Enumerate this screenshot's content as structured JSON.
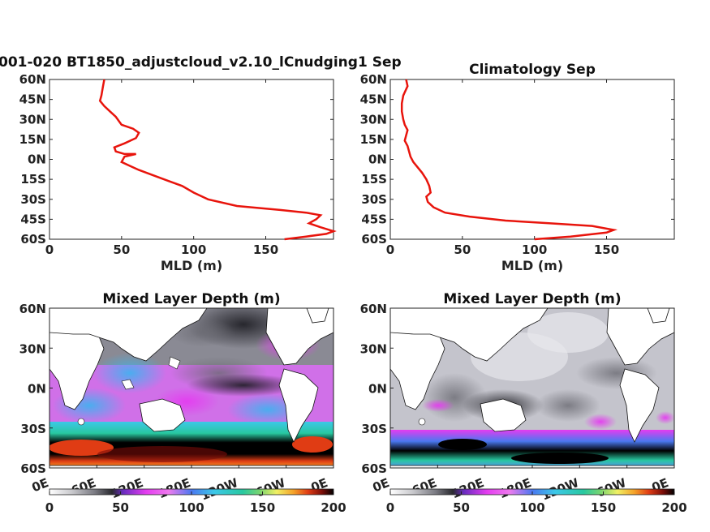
{
  "chart_data": [
    {
      "type": "line",
      "title": "001-020 BT1850_adjustcloud_v2.10_lCnudging1 Sep",
      "xlabel": "MLD (m)",
      "ylabel": "",
      "xlim": [
        0,
        197
      ],
      "ylim": [
        -60,
        60
      ],
      "xticks": [
        0,
        50,
        100,
        150
      ],
      "yticks": [
        "60N",
        "45N",
        "30N",
        "15N",
        "0N",
        "15S",
        "30S",
        "45S",
        "60S"
      ],
      "ytick_values": [
        60,
        45,
        30,
        15,
        0,
        -15,
        -30,
        -45,
        -60
      ],
      "series": [
        {
          "color": "#e8140c",
          "x": [
            163,
            178,
            192,
            197,
            188,
            180,
            185,
            188,
            178,
            160,
            130,
            110,
            100,
            92,
            82,
            72,
            62,
            56,
            50,
            52,
            60,
            52,
            46,
            45,
            52,
            60,
            62,
            58,
            50,
            46,
            42,
            38,
            35,
            36,
            37,
            38
          ],
          "y": [
            -60,
            -58,
            -56,
            -54,
            -51,
            -48,
            -45,
            -42,
            -40,
            -38,
            -35,
            -30,
            -25,
            -20,
            -16,
            -12,
            -8,
            -5,
            -2,
            2,
            4,
            4,
            6,
            9,
            12,
            16,
            20,
            23,
            26,
            32,
            36,
            40,
            44,
            48,
            54,
            60
          ]
        }
      ]
    },
    {
      "type": "line",
      "title": "Climatology Sep",
      "xlabel": "MLD (m)",
      "ylabel": "",
      "xlim": [
        0,
        197
      ],
      "ylim": [
        -60,
        60
      ],
      "xticks": [
        0,
        50,
        100,
        150
      ],
      "yticks": [
        "60N",
        "45N",
        "30N",
        "15N",
        "0N",
        "15S",
        "30S",
        "45S",
        "60S"
      ],
      "ytick_values": [
        60,
        45,
        30,
        15,
        0,
        -15,
        -30,
        -45,
        -60
      ],
      "series": [
        {
          "color": "#e8140c",
          "x": [
            100,
            125,
            150,
            155,
            140,
            110,
            80,
            55,
            38,
            30,
            26,
            25,
            28,
            27,
            25,
            22,
            19,
            16,
            14,
            13,
            12,
            10,
            11,
            12,
            10,
            9,
            8,
            8,
            9,
            12,
            11
          ],
          "y": [
            -60,
            -58,
            -55,
            -53,
            -50,
            -48,
            -46,
            -43,
            -40,
            -36,
            -32,
            -28,
            -25,
            -20,
            -15,
            -10,
            -6,
            -2,
            2,
            6,
            10,
            14,
            18,
            22,
            26,
            30,
            36,
            42,
            48,
            55,
            60
          ]
        }
      ]
    },
    {
      "type": "heatmap",
      "title": "Mixed Layer Depth (m)",
      "xticks": [
        "0E",
        "60E",
        "120E",
        "180E",
        "120W",
        "60W",
        "0E"
      ],
      "yticks": [
        "60N",
        "30N",
        "0N",
        "30S",
        "60S"
      ],
      "colorbar_ticks": [
        0,
        50,
        100,
        150,
        200
      ],
      "colorbar_range": [
        0,
        200
      ]
    },
    {
      "type": "heatmap",
      "title": "Mixed Layer Depth (m)",
      "xticks": [
        "0E",
        "60E",
        "120E",
        "180E",
        "120W",
        "60W",
        "0E"
      ],
      "yticks": [
        "60N",
        "30N",
        "0N",
        "30S",
        "60S"
      ],
      "colorbar_ticks": [
        0,
        50,
        100,
        150,
        200
      ],
      "colorbar_range": [
        0,
        200
      ]
    }
  ],
  "colors": {
    "line": "#e8140c",
    "land": "#ffffff",
    "colormap": [
      "#ffffff",
      "#c8c8cc",
      "#6a6a72",
      "#1c1c22",
      "#7a3cc8",
      "#e43cf0",
      "#ee78ee",
      "#5a8cf0",
      "#3cc8e8",
      "#28c8a0",
      "#64d278",
      "#f0f064",
      "#f4a028",
      "#e03c14",
      "#7a0c08",
      "#000000"
    ]
  }
}
